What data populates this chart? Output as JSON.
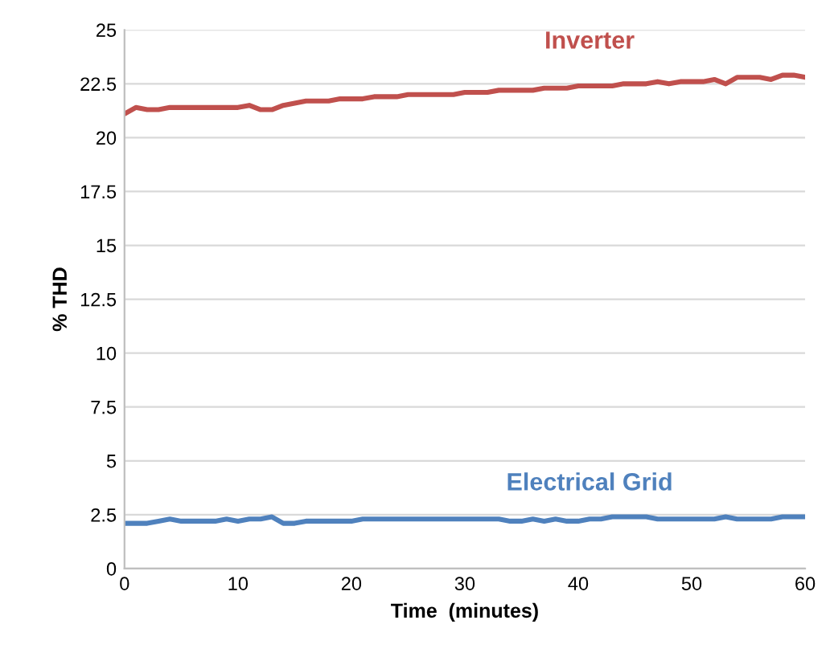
{
  "chart_data": {
    "type": "line",
    "xlabel": "Time  (minutes)",
    "ylabel": "% THD",
    "x": [
      0,
      1,
      2,
      3,
      4,
      5,
      6,
      7,
      8,
      9,
      10,
      11,
      12,
      13,
      14,
      15,
      16,
      17,
      18,
      19,
      20,
      21,
      22,
      23,
      24,
      25,
      26,
      27,
      28,
      29,
      30,
      31,
      32,
      33,
      34,
      35,
      36,
      37,
      38,
      39,
      40,
      41,
      42,
      43,
      44,
      45,
      46,
      47,
      48,
      49,
      50,
      51,
      52,
      53,
      54,
      55,
      56,
      57,
      58,
      59,
      60
    ],
    "series": [
      {
        "name": "Inverter",
        "color": "#c0504d",
        "values": [
          21.1,
          21.4,
          21.3,
          21.3,
          21.4,
          21.4,
          21.4,
          21.4,
          21.4,
          21.4,
          21.4,
          21.5,
          21.3,
          21.3,
          21.5,
          21.6,
          21.7,
          21.7,
          21.7,
          21.8,
          21.8,
          21.8,
          21.9,
          21.9,
          21.9,
          22.0,
          22.0,
          22.0,
          22.0,
          22.0,
          22.1,
          22.1,
          22.1,
          22.2,
          22.2,
          22.2,
          22.2,
          22.3,
          22.3,
          22.3,
          22.4,
          22.4,
          22.4,
          22.4,
          22.5,
          22.5,
          22.5,
          22.6,
          22.5,
          22.6,
          22.6,
          22.6,
          22.7,
          22.5,
          22.8,
          22.8,
          22.8,
          22.7,
          22.9,
          22.9,
          22.8
        ]
      },
      {
        "name": "Electrical Grid",
        "color": "#4f81bd",
        "values": [
          2.1,
          2.1,
          2.1,
          2.2,
          2.3,
          2.2,
          2.2,
          2.2,
          2.2,
          2.3,
          2.2,
          2.3,
          2.3,
          2.4,
          2.1,
          2.1,
          2.2,
          2.2,
          2.2,
          2.2,
          2.2,
          2.3,
          2.3,
          2.3,
          2.3,
          2.3,
          2.3,
          2.3,
          2.3,
          2.3,
          2.3,
          2.3,
          2.3,
          2.3,
          2.2,
          2.2,
          2.3,
          2.2,
          2.3,
          2.2,
          2.2,
          2.3,
          2.3,
          2.4,
          2.4,
          2.4,
          2.4,
          2.3,
          2.3,
          2.3,
          2.3,
          2.3,
          2.3,
          2.4,
          2.3,
          2.3,
          2.3,
          2.3,
          2.4,
          2.4,
          2.4
        ]
      }
    ],
    "xlim": [
      0,
      60
    ],
    "xticks": [
      0,
      10,
      20,
      30,
      40,
      50,
      60
    ],
    "ylim": [
      0,
      25
    ],
    "yticks": [
      0,
      2.5,
      5,
      7.5,
      10,
      12.5,
      15,
      17.5,
      20,
      22.5,
      25
    ],
    "grid": "y",
    "legend": false,
    "marker": "none",
    "line_style": "solid"
  }
}
